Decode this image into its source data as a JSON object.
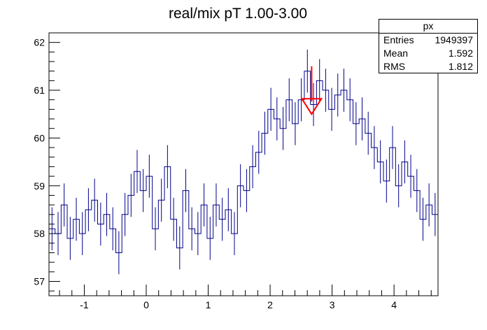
{
  "chart_data": {
    "type": "histogram",
    "title": "real/mix pT 1.00-3.00",
    "xlabel": "",
    "ylabel": "",
    "xlim": [
      -1.57,
      4.71
    ],
    "ylim": [
      56.7,
      62.2
    ],
    "x_ticks": [
      "-1",
      "0",
      "1",
      "2",
      "3",
      "4"
    ],
    "y_ticks": [
      "57",
      "58",
      "59",
      "60",
      "61",
      "62"
    ],
    "bin_width": 0.0982,
    "x": [
      -1.521,
      -1.423,
      -1.325,
      -1.227,
      -1.129,
      -1.031,
      -0.933,
      -0.834,
      -0.736,
      -0.638,
      -0.54,
      -0.442,
      -0.343,
      -0.245,
      -0.147,
      -0.049,
      0.049,
      0.147,
      0.245,
      0.343,
      0.442,
      0.54,
      0.638,
      0.736,
      0.834,
      0.933,
      1.031,
      1.129,
      1.227,
      1.325,
      1.423,
      1.521,
      1.62,
      1.718,
      1.816,
      1.914,
      2.012,
      2.11,
      2.209,
      2.307,
      2.405,
      2.503,
      2.601,
      2.7,
      2.798,
      2.896,
      2.994,
      3.092,
      3.19,
      3.289,
      3.387,
      3.485,
      3.583,
      3.681,
      3.78,
      3.878,
      3.976,
      4.074,
      4.172,
      4.27,
      4.369,
      4.467,
      4.565,
      4.663
    ],
    "values": [
      58.1,
      58.0,
      58.6,
      57.9,
      58.3,
      58.0,
      58.5,
      58.7,
      58.2,
      58.4,
      58.1,
      57.6,
      58.4,
      58.8,
      59.3,
      58.9,
      59.2,
      58.1,
      58.7,
      59.4,
      58.3,
      57.7,
      58.9,
      58.1,
      58.0,
      58.6,
      57.9,
      58.6,
      58.3,
      58.5,
      58.0,
      59.0,
      58.9,
      59.4,
      59.7,
      60.1,
      60.6,
      60.4,
      60.2,
      60.8,
      60.3,
      60.8,
      61.4,
      60.7,
      61.2,
      61.0,
      60.6,
      60.9,
      61.0,
      60.8,
      60.3,
      60.4,
      60.1,
      59.8,
      59.5,
      59.1,
      59.8,
      59.0,
      59.5,
      59.2,
      58.9,
      58.3,
      58.6,
      58.4
    ],
    "errors": [
      0.45,
      0.45,
      0.45,
      0.45,
      0.45,
      0.45,
      0.45,
      0.45,
      0.45,
      0.45,
      0.45,
      0.45,
      0.45,
      0.45,
      0.45,
      0.45,
      0.45,
      0.45,
      0.45,
      0.45,
      0.45,
      0.45,
      0.45,
      0.45,
      0.45,
      0.45,
      0.45,
      0.45,
      0.45,
      0.45,
      0.45,
      0.45,
      0.45,
      0.45,
      0.45,
      0.45,
      0.45,
      0.45,
      0.45,
      0.45,
      0.45,
      0.45,
      0.45,
      0.45,
      0.45,
      0.45,
      0.45,
      0.45,
      0.45,
      0.45,
      0.45,
      0.45,
      0.45,
      0.45,
      0.45,
      0.45,
      0.45,
      0.45,
      0.45,
      0.45,
      0.45,
      0.45,
      0.45,
      0.45
    ],
    "line_color": "#00008b",
    "arrow": {
      "x": 2.67,
      "y_top": 61.5,
      "y_tip": 60.5,
      "color": "#ff0000"
    },
    "grid": false,
    "legend_position": "top-right"
  },
  "stats": {
    "name": "px",
    "rows": [
      {
        "label": "Entries",
        "value": "1949397"
      },
      {
        "label": "Mean",
        "value": "1.592"
      },
      {
        "label": "RMS",
        "value": "1.812"
      }
    ]
  }
}
